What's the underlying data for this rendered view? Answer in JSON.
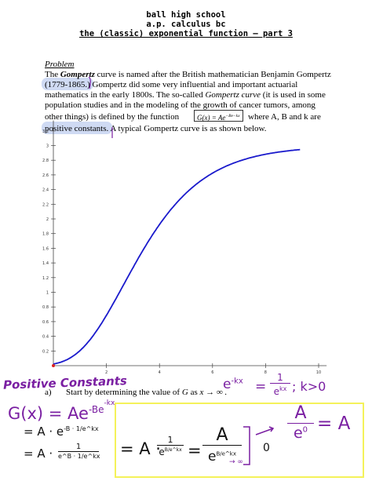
{
  "header": {
    "line1": "ball high school",
    "line2": "a.p. calculus bc",
    "line3": "the (classic) exponential function – part 3"
  },
  "problem": {
    "heading": "Problem",
    "line1_pre": "The ",
    "line1_bold": "Gompertz",
    "line1_post": " curve is named after the British mathematician Benjamin Gompertz",
    "line2_years": "(1779-1865.)",
    "line2_post": "  Gompertz did some very influential and important actuarial",
    "line3_pre": "mathematics in the early 1800s.   The so-called ",
    "line3_italic": "Gompertz curve",
    "line3_post": " (it is used in some",
    "line4": "population studies and in the modeling of the growth of cancer tumors, among",
    "line5_pre": "other things) is defined by the function",
    "line5_post": "where  A, B  and  k  are",
    "formula": "G(x) = Ae",
    "formula_exp": "−Be−kx",
    "line6_hl": "positive constants.",
    "line6_post": "  A typical Gompertz curve is as shown below."
  },
  "chart_data": {
    "type": "line",
    "x_ticks": [
      "2",
      "4",
      "6",
      "8",
      "10"
    ],
    "y_ticks": [
      "0.2",
      "0.4",
      "0.6",
      "0.8",
      "1",
      "1.2",
      "1.4",
      "1.6",
      "1.8",
      "2",
      "2.2",
      "2.4",
      "2.6",
      "2.8",
      "3",
      "3.2"
    ],
    "xlim": [
      0,
      10.3
    ],
    "ylim": [
      0,
      3.3
    ],
    "curve": {
      "A": 3,
      "B": 4.9,
      "k": 0.6,
      "x_max": 9.3,
      "color": "#1a1acc"
    }
  },
  "part_a": {
    "label": "a)",
    "text_pre": "Start by determining the value of ",
    "var": "G",
    "text_as": " as ",
    "limit": "x → ∞ ."
  },
  "handwriting": {
    "positive_constants": "Positive Constants",
    "hint_lhs": "e",
    "hint_lhs_exp": "-kx",
    "hint_eq": "=",
    "hint_num": "1",
    "hint_den": "e",
    "hint_den_exp": "kx",
    "hint_cond": "; k>0",
    "g_lhs": "G(x) = Ae",
    "g_exp": "-Be",
    "g_exp2": "-kx",
    "step1": "= A · e",
    "step1_exp": "-B · 1/e^kx",
    "step2": "= A ·",
    "step2_num": "1",
    "step2_den": "e^B · 1/e^kx",
    "box_eq1": "= A ·",
    "box_num1": "1",
    "box_den1": "e",
    "box_den1_exp": "B/e^kx",
    "box_eq2": "=",
    "box_num2": "A",
    "box_den2": "e",
    "box_den2_exp": "B/e^kx",
    "arrow_inf": "→ ∞",
    "arrow_zero": "0",
    "result_num": "A",
    "result_den": "e",
    "result_den_exp": "0",
    "result_eq": "= A",
    "colors": {
      "ink_purple": "#7a1fa2",
      "ink_black": "#111111",
      "highlight_yellow": "#f4f25a",
      "highlight_blue": "#cfdaf3"
    }
  }
}
